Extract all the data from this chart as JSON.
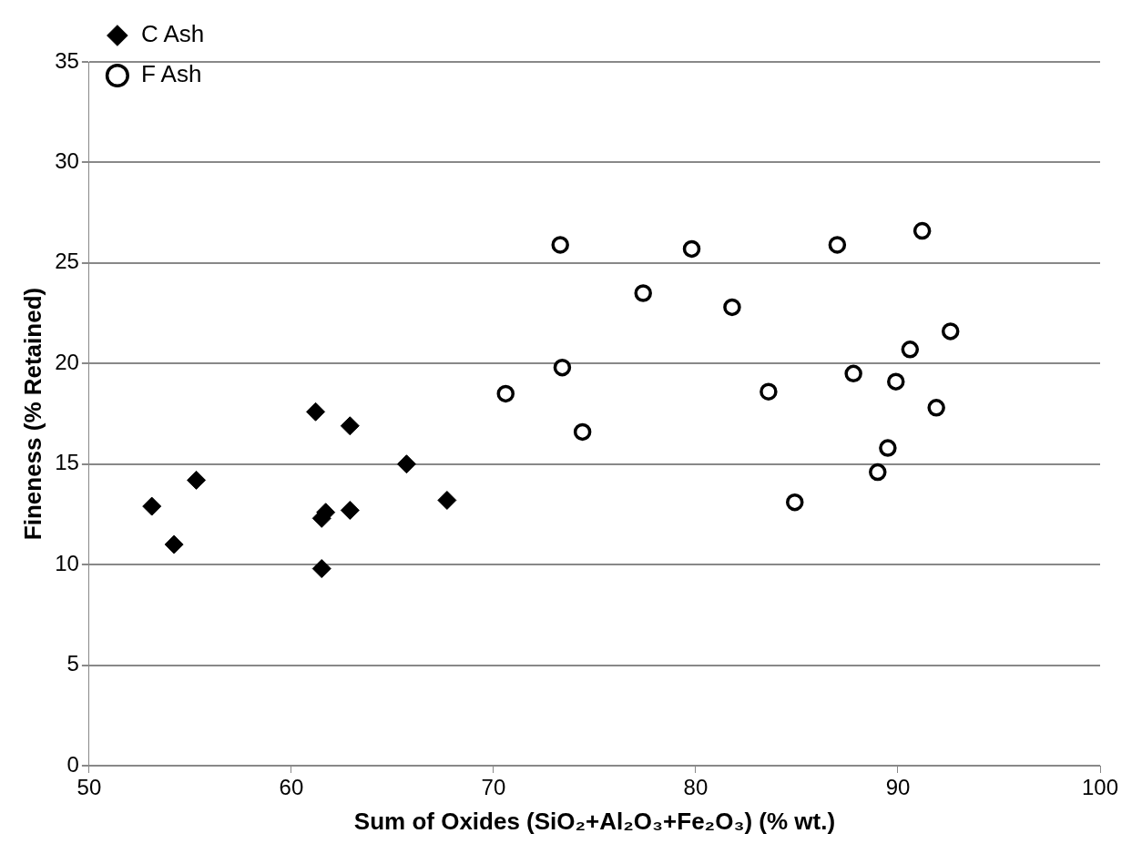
{
  "chart_data": {
    "type": "scatter",
    "xlabel": "Sum of Oxides (SiO₂+Al₂O₃+Fe₂O₃) (% wt.)",
    "ylabel": "Fineness (% Retained)",
    "xlim": [
      50,
      100
    ],
    "xticks": [
      50,
      60,
      70,
      80,
      90,
      100
    ],
    "ylim": [
      0,
      35
    ],
    "yticks": [
      0,
      5,
      10,
      15,
      20,
      25,
      30,
      35
    ],
    "grid": "y",
    "legend": "top left",
    "series": [
      {
        "name": "C Ash",
        "color": "#000000",
        "marker": "diamond",
        "x": [
          53.1,
          54.2,
          55.3,
          61.2,
          62.9,
          65.7,
          67.7,
          61.7,
          61.5,
          61.5,
          62.9
        ],
        "values": [
          12.9,
          11.0,
          14.2,
          17.6,
          16.9,
          15.0,
          13.2,
          12.6,
          12.3,
          9.8,
          12.7
        ]
      },
      {
        "name": "F Ash",
        "color": "#000000",
        "marker": "circle",
        "x": [
          70.6,
          73.3,
          73.4,
          74.4,
          77.4,
          79.8,
          81.8,
          83.6,
          84.9,
          87.0,
          87.8,
          89.0,
          89.5,
          89.9,
          90.6,
          91.2,
          91.9,
          92.6
        ],
        "values": [
          18.5,
          25.9,
          19.8,
          16.6,
          23.5,
          25.7,
          22.8,
          18.6,
          13.1,
          25.9,
          19.5,
          14.6,
          15.8,
          19.1,
          20.7,
          26.6,
          17.8,
          21.6
        ]
      }
    ]
  }
}
